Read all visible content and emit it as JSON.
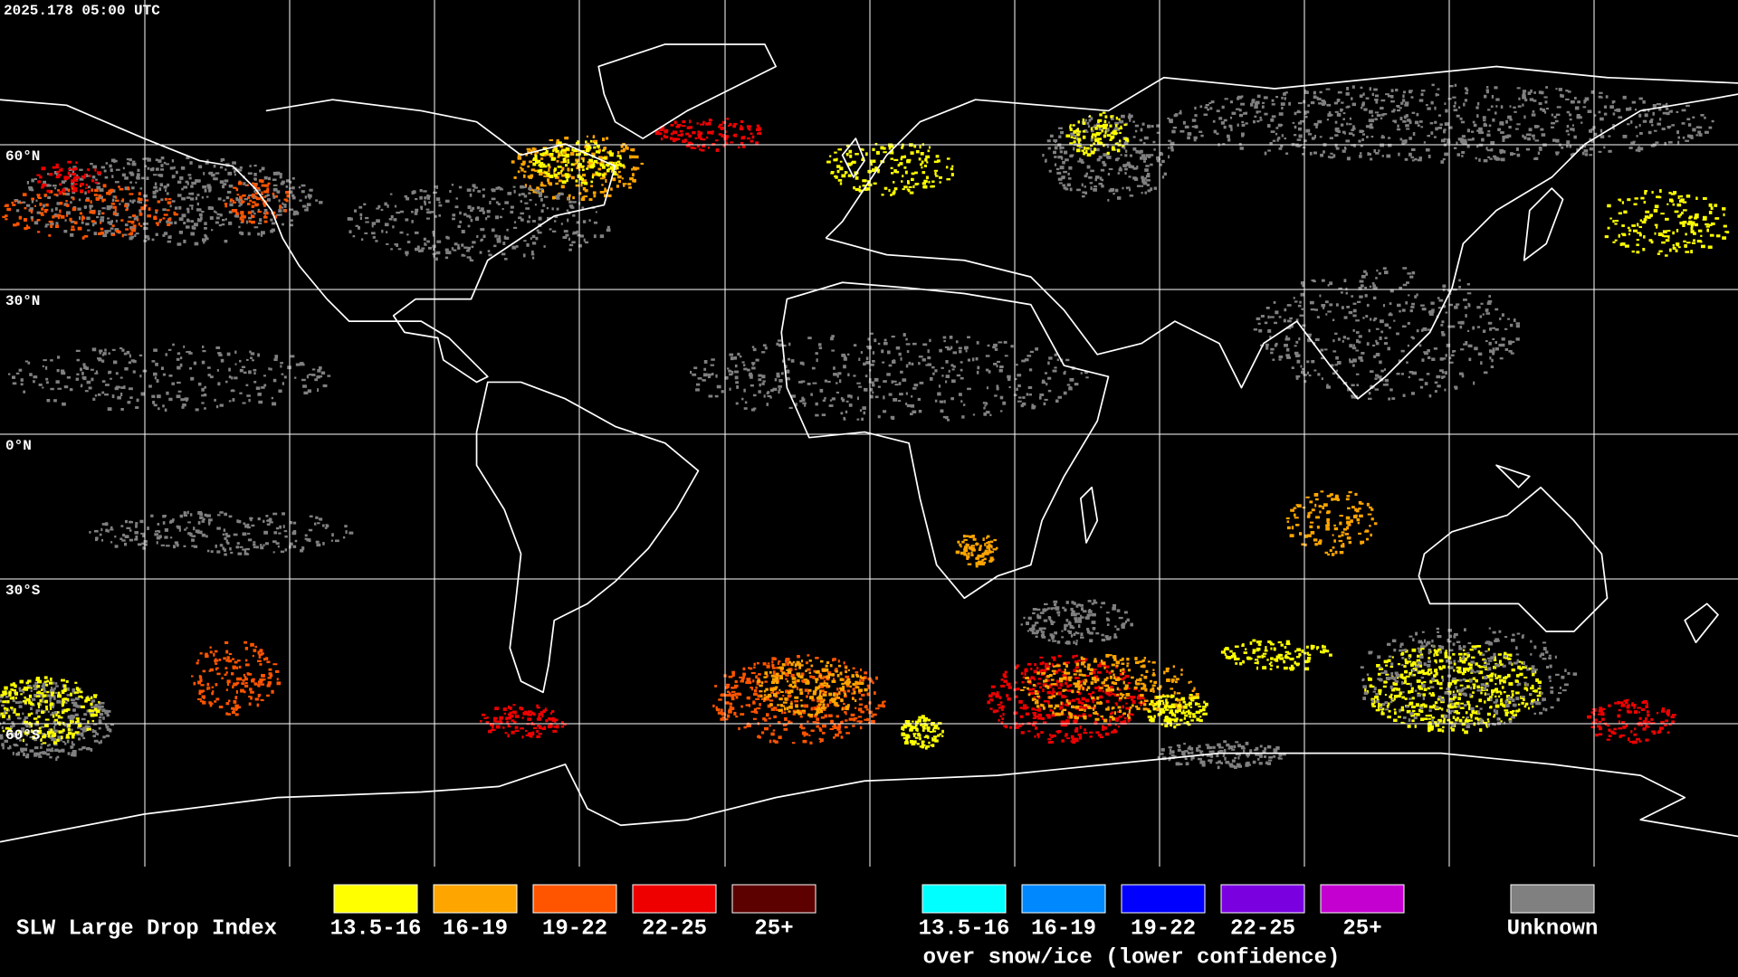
{
  "header": {
    "timestamp": "2025.178 05:00 UTC"
  },
  "latitude_labels": [
    "60°N",
    "30°N",
    "0°N",
    "30°S",
    "60°S"
  ],
  "legend": {
    "title": "SLW Large Drop Index",
    "items": [
      {
        "label": "13.5-16",
        "color": "#ffff00"
      },
      {
        "label": "16-19",
        "color": "#ffa500"
      },
      {
        "label": "19-22",
        "color": "#ff5500"
      },
      {
        "label": "22-25",
        "color": "#ee0000"
      },
      {
        "label": "25+",
        "color": "#5c0000"
      }
    ],
    "snow_items": [
      {
        "label": "13.5-16",
        "color": "#00ffff"
      },
      {
        "label": "16-19",
        "color": "#0088ff"
      },
      {
        "label": "19-22",
        "color": "#0000ff"
      },
      {
        "label": "22-25",
        "color": "#7a00e0"
      },
      {
        "label": "25+",
        "color": "#c400d0"
      }
    ],
    "snow_caption": "over snow/ice (lower confidence)",
    "unknown": {
      "label": "Unknown",
      "color": "#808080"
    }
  }
}
